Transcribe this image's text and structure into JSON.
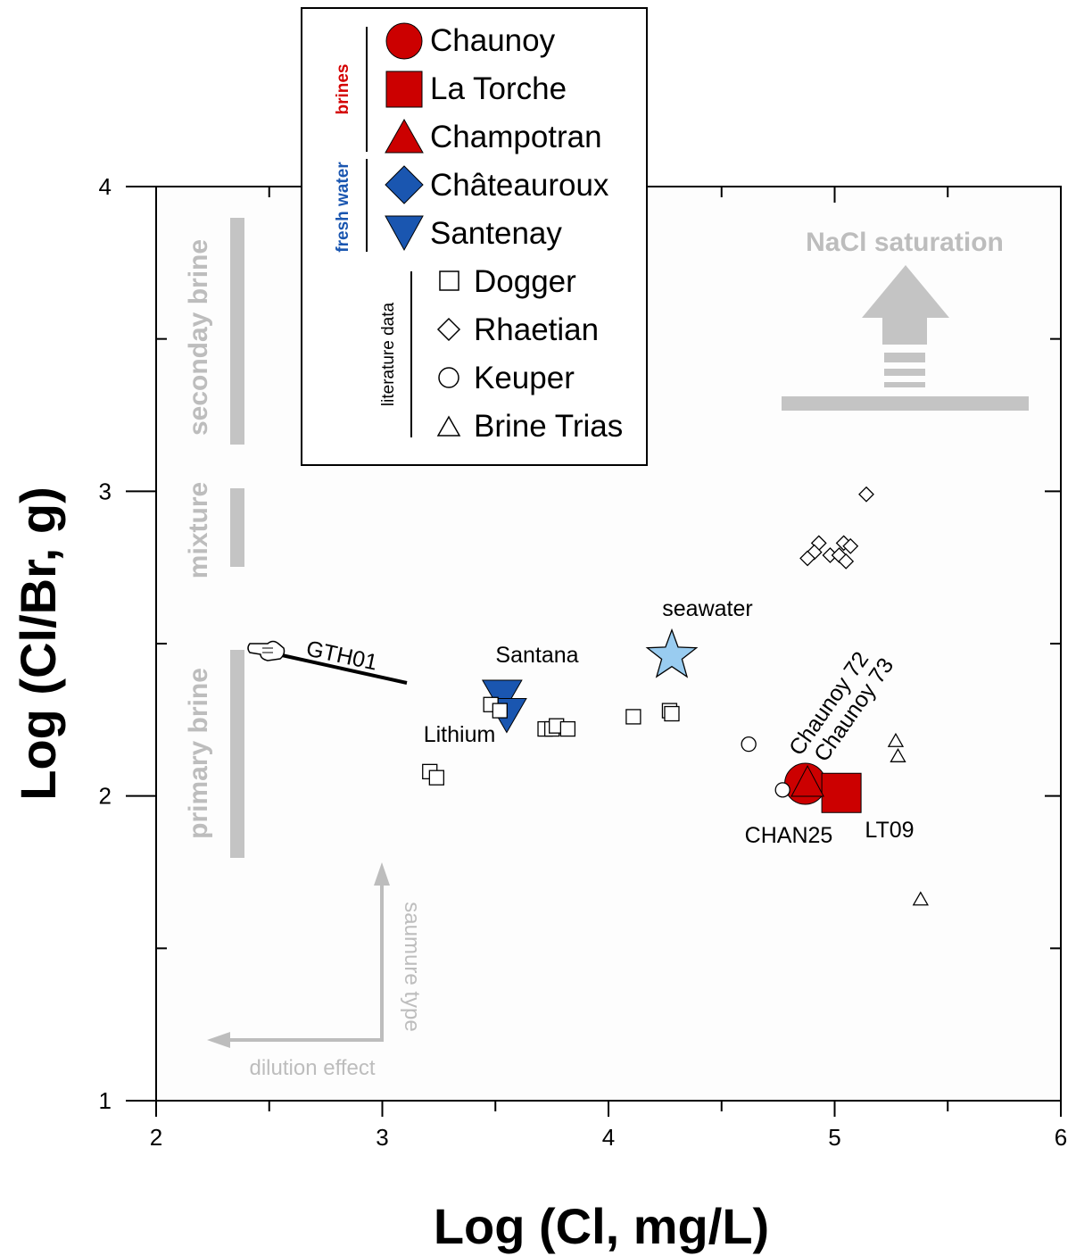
{
  "chart_data": {
    "type": "scatter",
    "xlabel": "Log (Cl, mg/L)",
    "ylabel": "Log (Cl/Br, g)",
    "xlim": [
      2,
      6
    ],
    "ylim": [
      1,
      4
    ],
    "x_ticks": [
      "2",
      "3",
      "4",
      "5",
      "6"
    ],
    "y_ticks": [
      "1",
      "2",
      "3",
      "4"
    ],
    "legend": {
      "groups": [
        {
          "label": "brines",
          "color": "#d40000",
          "entries": [
            "Chaunoy",
            "La Torche",
            "Champotran"
          ]
        },
        {
          "label": "fresh water",
          "color": "#1a56b0",
          "entries": [
            "Châteauroux",
            "Santenay"
          ]
        },
        {
          "label": "literature data",
          "color": "#000000",
          "entries": [
            "Dogger",
            "Rhaetian",
            "Keuper",
            "Brine Trias"
          ]
        }
      ],
      "placement": "top-center"
    },
    "series": [
      {
        "name": "Chaunoy",
        "marker": "circle",
        "color": "#cc0000",
        "points": [
          [
            4.87,
            2.04
          ]
        ]
      },
      {
        "name": "La Torche",
        "marker": "square",
        "color": "#cc0000",
        "points": [
          [
            5.03,
            2.01
          ]
        ]
      },
      {
        "name": "Champotran",
        "marker": "triangle",
        "color": "#cc0000",
        "points": [
          [
            4.88,
            2.04
          ]
        ]
      },
      {
        "name": "Santenay",
        "marker": "triangle-down",
        "color": "#1a56b0",
        "points": [
          [
            3.53,
            2.33
          ],
          [
            3.55,
            2.27
          ]
        ]
      },
      {
        "name": "Dogger",
        "marker": "open-square",
        "color": "#000000",
        "points": [
          [
            3.21,
            2.08
          ],
          [
            3.24,
            2.06
          ],
          [
            3.48,
            2.3
          ],
          [
            3.52,
            2.28
          ],
          [
            3.72,
            2.22
          ],
          [
            3.75,
            2.22
          ],
          [
            3.77,
            2.23
          ],
          [
            3.82,
            2.22
          ],
          [
            4.11,
            2.26
          ],
          [
            4.27,
            2.28
          ],
          [
            4.28,
            2.27
          ]
        ]
      },
      {
        "name": "Rhaetian",
        "marker": "open-diamond",
        "color": "#000000",
        "points": [
          [
            5.14,
            2.99
          ],
          [
            4.93,
            2.83
          ],
          [
            5.04,
            2.83
          ],
          [
            4.91,
            2.8
          ],
          [
            5.07,
            2.82
          ],
          [
            4.88,
            2.78
          ],
          [
            4.98,
            2.79
          ],
          [
            5.02,
            2.79
          ],
          [
            5.05,
            2.77
          ]
        ]
      },
      {
        "name": "Keuper",
        "marker": "open-circle",
        "color": "#000000",
        "points": [
          [
            4.62,
            2.17
          ],
          [
            4.77,
            2.02
          ]
        ]
      },
      {
        "name": "Brine Trias",
        "marker": "open-triangle",
        "color": "#000000",
        "points": [
          [
            5.27,
            2.18
          ],
          [
            5.28,
            2.13
          ],
          [
            5.38,
            1.66
          ]
        ]
      },
      {
        "name": "seawater",
        "marker": "star",
        "color": "#99ccf0",
        "points": [
          [
            4.28,
            2.46
          ]
        ]
      }
    ],
    "annotations": {
      "seawater": "seawater",
      "santana": "Santana",
      "lithium": "Lithium",
      "gth01": "GTH01",
      "chaunoy72": "Chaunoy 72",
      "chaunoy73": "Chaunoy 73",
      "chan25": "CHAN25",
      "lt09": "LT09",
      "nacl": "NaCl saturation",
      "secondary_brine": "seconday brine",
      "mixture": "mixture",
      "primary_brine": "primary brine",
      "saumure": "saumure type",
      "dilution": "dilution effect"
    },
    "grid": false
  }
}
